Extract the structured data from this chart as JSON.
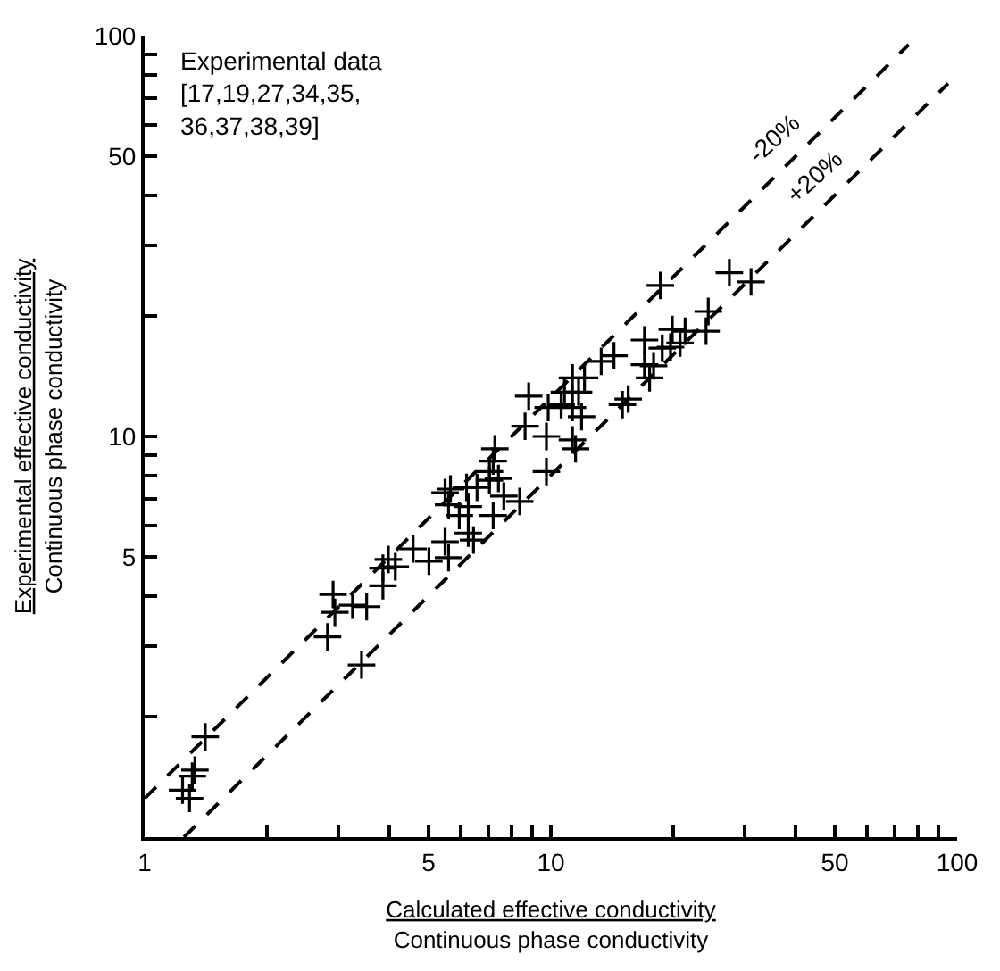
{
  "chart_data": {
    "type": "scatter",
    "xlabel": "Calculated effective conductivity\nContinuous phase conductivity",
    "ylabel": "Experimental effective conductivity\nContinuous phase conductivity",
    "log": "xy",
    "legend": false,
    "marker": "cross",
    "xlim": [
      1,
      100
    ],
    "ylim": [
      1,
      100
    ],
    "xticks": [
      1,
      {
        "value": 2,
        "label": null
      },
      {
        "value": 3,
        "label": null
      },
      {
        "value": 4,
        "label": null
      },
      5,
      {
        "value": 6,
        "label": null
      },
      {
        "value": 7,
        "label": null
      },
      {
        "value": 8,
        "label": null
      },
      {
        "value": 9,
        "label": null
      },
      10,
      {
        "value": 20,
        "label": null
      },
      {
        "value": 30,
        "label": null
      },
      {
        "value": 40,
        "label": null
      },
      50,
      {
        "value": 60,
        "label": null
      },
      {
        "value": 70,
        "label": null
      },
      {
        "value": 80,
        "label": null
      },
      {
        "value": 90,
        "label": null
      },
      100
    ],
    "yticks": [
      {
        "value": 1,
        "label": null
      },
      {
        "value": 2,
        "label": null
      },
      {
        "value": 3,
        "label": null
      },
      {
        "value": 4,
        "label": null
      },
      5,
      {
        "value": 6,
        "label": null
      },
      {
        "value": 7,
        "label": null
      },
      {
        "value": 8,
        "label": null
      },
      {
        "value": 9,
        "label": null
      },
      10,
      {
        "value": 20,
        "label": null
      },
      {
        "value": 30,
        "label": null
      },
      {
        "value": 40,
        "label": null
      },
      50,
      {
        "value": 60,
        "label": null
      },
      {
        "value": 70,
        "label": null
      },
      {
        "value": 80,
        "label": null
      },
      {
        "value": 90,
        "label": null
      },
      100
    ],
    "series": [
      {
        "color": "#000000",
        "x": [
          1.41,
          1.33,
          1.31,
          1.24,
          1.29,
          2.82,
          2.91,
          2.94,
          3.25,
          3.52,
          3.86,
          3.98,
          4.14,
          3.86,
          4.58,
          5.01,
          5.49,
          5.6,
          6.26,
          6.45,
          3.42,
          5.49,
          5.6,
          5.95,
          6.26,
          7.21,
          6.58,
          7.06,
          7.43,
          7.66,
          8.38,
          9.75,
          18.6,
          27.5,
          31.1,
          24.4,
          24.1,
          19.9,
          21.4,
          18.8,
          19.7,
          20.8,
          17.0,
          17.0,
          17.9,
          17.5,
          15.0,
          15.5,
          14.3,
          13.3,
          12.1,
          11.3,
          11.7,
          10.8,
          10.6,
          9.85,
          11.3,
          11.9,
          8.82,
          8.64,
          9.75,
          11.3,
          11.5,
          7.28,
          7.21,
          7.06,
          5.66,
          6.2
        ],
        "values": [
          1.78,
          1.47,
          1.42,
          1.31,
          1.25,
          3.16,
          4.03,
          3.64,
          3.79,
          3.76,
          4.24,
          4.93,
          4.73,
          4.69,
          5.24,
          4.88,
          5.46,
          4.98,
          5.74,
          5.51,
          2.69,
          7.24,
          6.75,
          6.35,
          6.68,
          6.35,
          7.46,
          8.17,
          7.85,
          7.1,
          6.88,
          8.17,
          23.8,
          25.6,
          24.3,
          20.5,
          18.3,
          18.5,
          18.3,
          16.6,
          16.7,
          17.1,
          17.4,
          15.1,
          15.0,
          14.0,
          12.0,
          12.4,
          15.9,
          15.4,
          14.0,
          14.0,
          12.9,
          12.9,
          12.0,
          11.8,
          11.8,
          11.2,
          12.6,
          10.6,
          10.0,
          9.8,
          9.31,
          9.31,
          8.68,
          7.77,
          7.39,
          7.46
        ]
      },
      {
        "type": "line",
        "name": "-20%",
        "color": "#000000",
        "line_style": "dashed",
        "marker": "none",
        "x": [
          1,
          76
        ],
        "values": [
          1.25,
          95
        ]
      },
      {
        "type": "line",
        "name": "+20%",
        "color": "#000000",
        "line_style": "dashed",
        "marker": "none",
        "x": [
          1.25,
          95
        ],
        "values": [
          1,
          76
        ]
      }
    ],
    "annotations": [
      "Experimental data\n[17,19,27,34,35,\n36,37,38,39]"
    ]
  }
}
